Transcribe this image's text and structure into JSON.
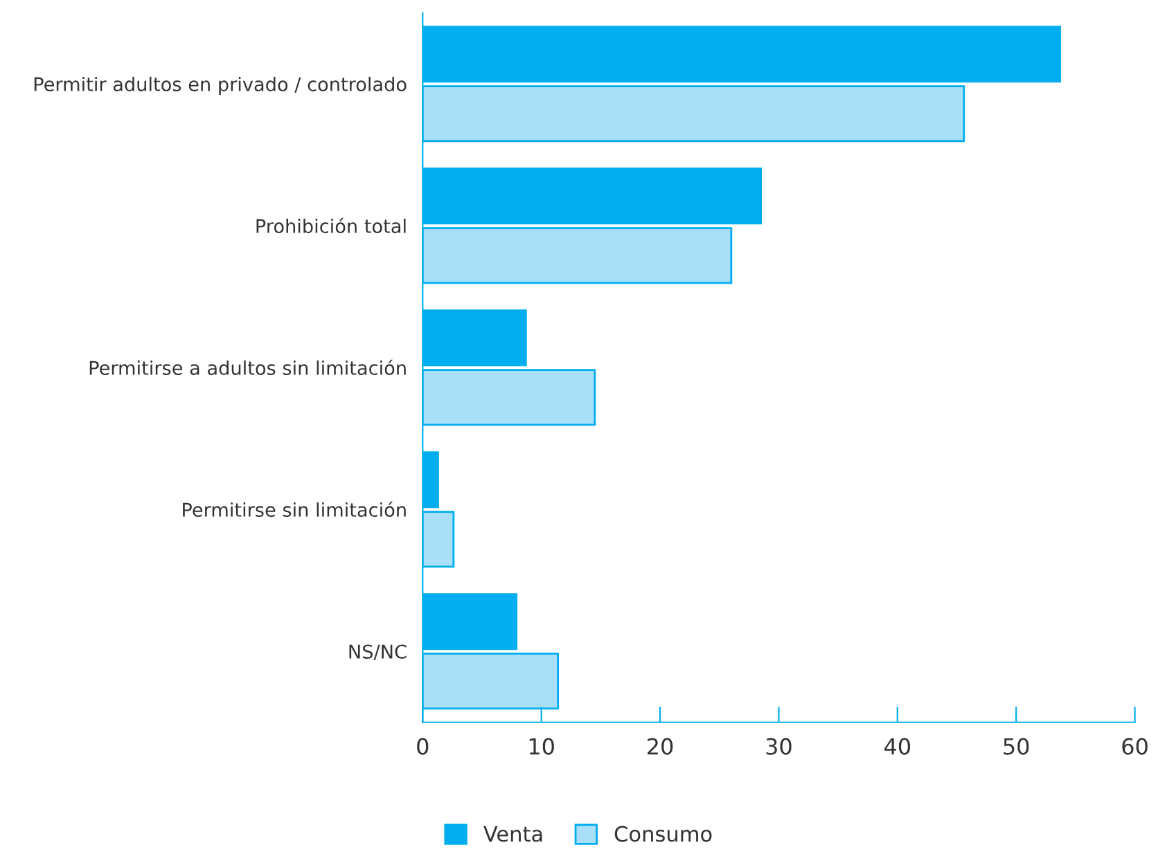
{
  "chart_data": {
    "type": "bar",
    "orientation": "horizontal",
    "categories": [
      "Permitir adultos en privado / controlado",
      "Prohibición total",
      "Permitirse a adultos sin limitación",
      "Permitirse sin limitación",
      "NS/NC"
    ],
    "series": [
      {
        "name": "Venta",
        "color": "#00aeef",
        "values": [
          53.7,
          28.5,
          8.7,
          1.3,
          7.9
        ]
      },
      {
        "name": "Consumo",
        "color": "#a9dff8",
        "values": [
          45.6,
          26.0,
          14.5,
          2.6,
          11.4
        ]
      }
    ],
    "xlim": [
      0,
      60
    ],
    "xticks": [
      0,
      10,
      20,
      30,
      40,
      50,
      60
    ],
    "grid": false,
    "legend": "bottom"
  }
}
